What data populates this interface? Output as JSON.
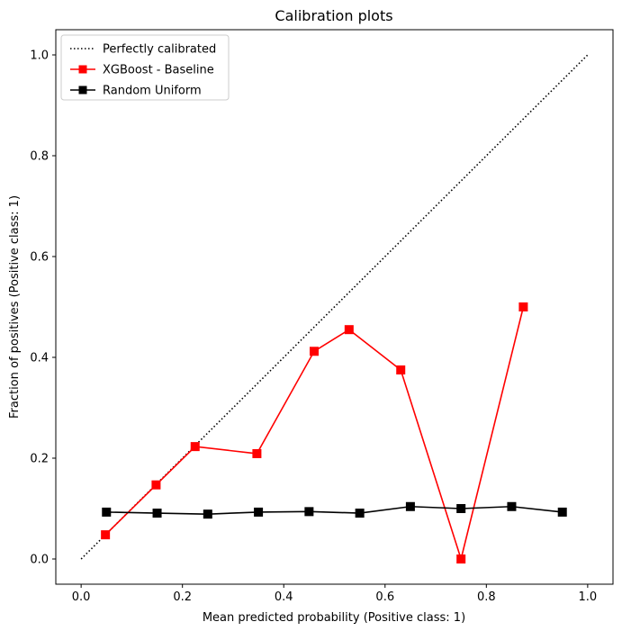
{
  "chart_data": {
    "type": "line",
    "title": "Calibration plots",
    "xlabel": "Mean predicted probability (Positive class: 1)",
    "ylabel": "Fraction of positives (Positive class: 1)",
    "xlim": [
      -0.05,
      1.05
    ],
    "ylim": [
      -0.05,
      1.05
    ],
    "xticks": [
      0.0,
      0.2,
      0.4,
      0.6,
      0.8,
      1.0
    ],
    "yticks": [
      0.0,
      0.2,
      0.4,
      0.6,
      0.8,
      1.0
    ],
    "tick_labels_x": [
      "0.0",
      "0.2",
      "0.4",
      "0.6",
      "0.8",
      "1.0"
    ],
    "tick_labels_y": [
      "0.0",
      "0.2",
      "0.4",
      "0.6",
      "0.8",
      "1.0"
    ],
    "grid": false,
    "legend_position": "top-left",
    "series": [
      {
        "name": "Perfectly calibrated",
        "style": "dotted",
        "color": "#000000",
        "marker": "none",
        "x": [
          0.0,
          1.0
        ],
        "y": [
          0.0,
          1.0
        ]
      },
      {
        "name": "XGBoost - Baseline",
        "style": "solid",
        "color": "#ff0000",
        "marker": "square",
        "x": [
          0.048,
          0.148,
          0.225,
          0.347,
          0.46,
          0.529,
          0.631,
          0.75,
          0.873
        ],
        "y": [
          0.048,
          0.147,
          0.223,
          0.209,
          0.412,
          0.455,
          0.375,
          0.0,
          0.5
        ]
      },
      {
        "name": "Random Uniform",
        "style": "solid",
        "color": "#000000",
        "marker": "square",
        "x": [
          0.05,
          0.15,
          0.25,
          0.35,
          0.45,
          0.55,
          0.65,
          0.75,
          0.85,
          0.95
        ],
        "y": [
          0.093,
          0.091,
          0.089,
          0.093,
          0.094,
          0.091,
          0.104,
          0.1,
          0.104,
          0.093
        ]
      }
    ]
  }
}
